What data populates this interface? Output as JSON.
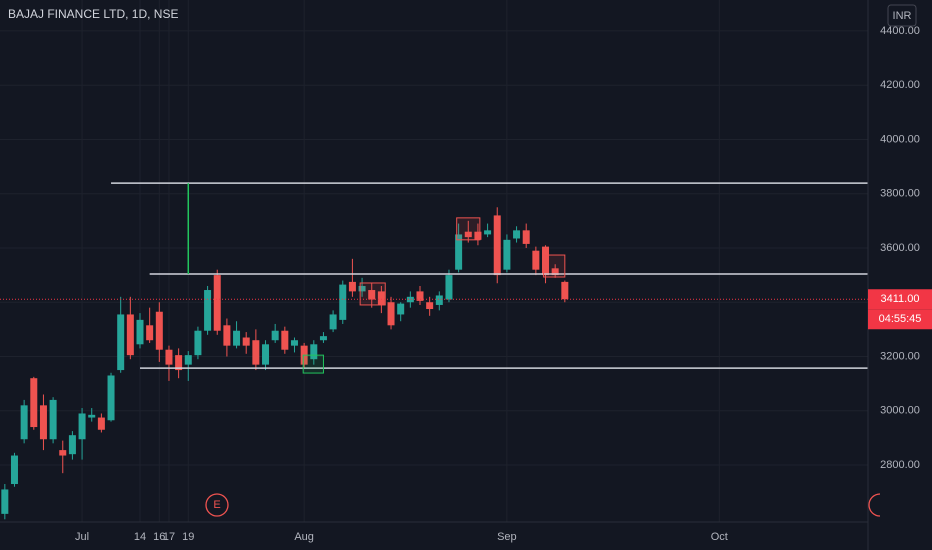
{
  "chart_data": {
    "type": "candlestick",
    "title": "BAJAJ FINANCE LTD, 1D, NSE",
    "currency": "INR",
    "x": [
      0,
      1,
      2,
      3,
      4,
      5,
      6,
      7,
      8,
      9,
      10,
      11,
      12,
      13,
      14,
      15,
      16,
      17,
      18,
      19,
      20,
      21,
      22,
      23,
      24,
      25,
      26,
      27,
      28,
      29,
      30,
      31,
      32,
      33,
      34,
      35,
      36,
      37,
      38,
      39,
      40,
      41,
      42,
      43,
      44,
      45,
      46,
      47,
      48,
      49,
      50,
      51,
      52,
      53,
      54,
      55,
      56,
      57,
      58
    ],
    "open": [
      2620,
      2730,
      2895,
      3120,
      3020,
      2895,
      2855,
      2840,
      2895,
      2975,
      2975,
      2965,
      3150,
      3355,
      3245,
      3315,
      3365,
      3225,
      3205,
      3170,
      3205,
      3295,
      3500,
      3315,
      3240,
      3270,
      3260,
      3170,
      3260,
      3295,
      3240,
      3240,
      3190,
      3260,
      3300,
      3335,
      3475,
      3440,
      3445,
      3440,
      3400,
      3355,
      3400,
      3440,
      3400,
      3390,
      3410,
      3520,
      3660,
      3660,
      3650,
      3720,
      3520,
      3635,
      3665,
      3590,
      3605,
      3525,
      3475
    ],
    "high": [
      2730,
      2845,
      3040,
      3125,
      3060,
      3050,
      2890,
      2925,
      3010,
      3010,
      2990,
      3140,
      3420,
      3420,
      3360,
      3380,
      3400,
      3240,
      3230,
      3220,
      3310,
      3460,
      3520,
      3340,
      3330,
      3290,
      3300,
      3260,
      3320,
      3310,
      3270,
      3250,
      3260,
      3290,
      3370,
      3480,
      3560,
      3490,
      3470,
      3460,
      3420,
      3400,
      3440,
      3460,
      3420,
      3440,
      3520,
      3690,
      3700,
      3690,
      3690,
      3750,
      3650,
      3680,
      3690,
      3605,
      3610,
      3540,
      3480
    ],
    "low": [
      2600,
      2720,
      2880,
      2930,
      2855,
      2880,
      2770,
      2820,
      2820,
      2960,
      2920,
      2960,
      3140,
      3190,
      3230,
      3250,
      3180,
      3110,
      3120,
      3110,
      3190,
      3280,
      3280,
      3200,
      3230,
      3210,
      3150,
      3150,
      3250,
      3210,
      3215,
      3160,
      3170,
      3250,
      3290,
      3320,
      3420,
      3420,
      3380,
      3360,
      3300,
      3330,
      3380,
      3390,
      3350,
      3370,
      3400,
      3510,
      3620,
      3610,
      3640,
      3470,
      3510,
      3620,
      3600,
      3500,
      3470,
      3490,
      3400
    ],
    "close": [
      2710,
      2835,
      3020,
      2940,
      2895,
      3040,
      2835,
      2910,
      2990,
      2985,
      2930,
      3130,
      3355,
      3205,
      3335,
      3260,
      3225,
      3170,
      3150,
      3205,
      3295,
      3445,
      3295,
      3240,
      3295,
      3240,
      3170,
      3245,
      3295,
      3225,
      3260,
      3170,
      3245,
      3275,
      3355,
      3465,
      3440,
      3460,
      3410,
      3390,
      3315,
      3395,
      3420,
      3405,
      3375,
      3425,
      3500,
      3650,
      3640,
      3630,
      3665,
      3500,
      3630,
      3665,
      3615,
      3520,
      3500,
      3500,
      3411
    ],
    "up_color": "#26a69a",
    "down_color": "#ef5350",
    "xlim": [
      -0.5,
      89.4
    ],
    "ylim": [
      2590,
      4514
    ],
    "xticks": [
      {
        "value": 8,
        "label": "Jul"
      },
      16,
      {
        "value": 31,
        "label": "Aug"
      },
      17,
      {
        "value": 52,
        "label": "Sep"
      },
      14,
      {
        "value": 74,
        "label": "Oct"
      },
      19
    ],
    "yticks": [
      {
        "value": 2800,
        "label": "2800.00"
      },
      {
        "value": 3000,
        "label": "3000.00"
      },
      {
        "value": 3200,
        "label": "3200.00"
      },
      {
        "value": 3400,
        "label": "3400.00"
      },
      {
        "value": 3600,
        "label": "3600.00"
      },
      {
        "value": 3800,
        "label": "3800.00"
      },
      {
        "value": 4000,
        "label": "4000.00"
      },
      {
        "value": 4200,
        "label": "4200.00"
      },
      {
        "value": 4400,
        "label": "4400.00"
      }
    ],
    "grid": true,
    "last_price": {
      "value": 3411,
      "label": "3411.00"
    },
    "countdown": "04:55:45",
    "levels": [
      {
        "price": 3839,
        "from": 11
      },
      {
        "price": 3504,
        "from": 15
      },
      {
        "price": 3157,
        "from": 14
      }
    ],
    "measure": {
      "x": 19,
      "from": 3504,
      "to": 3839,
      "color": "#22c55e"
    },
    "boxes": [
      {
        "x0": 36.8,
        "x1": 39.4,
        "y0": 3390,
        "y1": 3471,
        "color": "#ef5350"
      },
      {
        "x0": 46.8,
        "x1": 49.2,
        "y0": 3630,
        "y1": 3711,
        "color": "#ef5350"
      },
      {
        "x0": 55.8,
        "x1": 58.0,
        "y0": 3493,
        "y1": 3574,
        "color": "#ef5350"
      },
      {
        "x0": 30.9,
        "x1": 33.0,
        "y0": 3139,
        "y1": 3205,
        "color": "#22c55e"
      }
    ]
  }
}
